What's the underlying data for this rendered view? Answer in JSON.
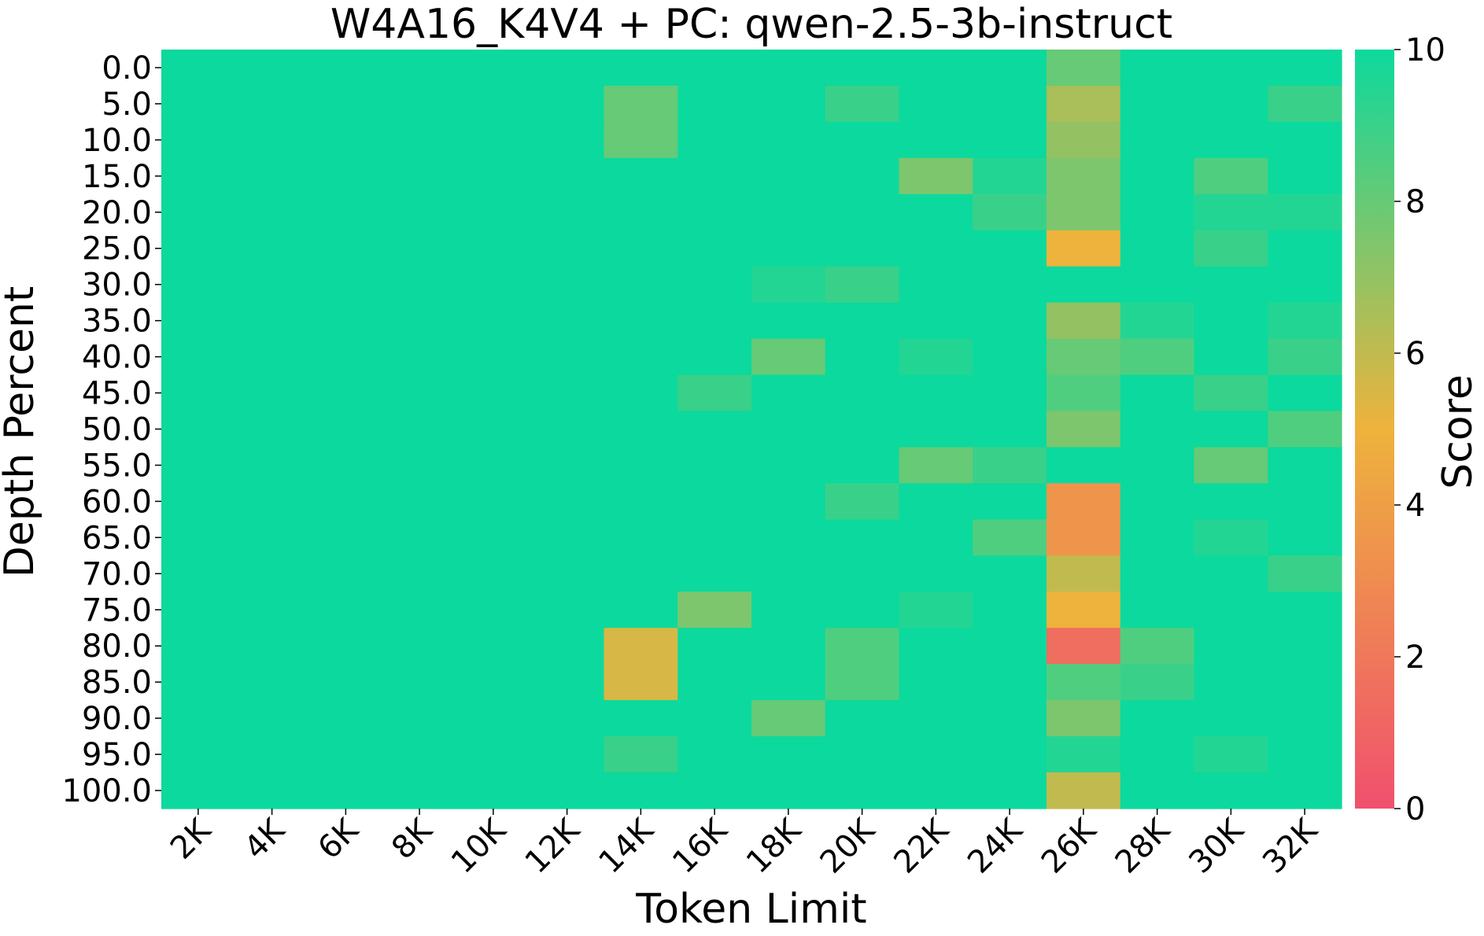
{
  "chart_data": {
    "type": "heatmap",
    "title": "W4A16_K4V4 + PC: qwen-2.5-3b-instruct",
    "xlabel": "Token Limit",
    "ylabel": "Depth Percent",
    "x_categories": [
      "2K",
      "4K",
      "6K",
      "8K",
      "10K",
      "12K",
      "14K",
      "16K",
      "18K",
      "20K",
      "22K",
      "24K",
      "26K",
      "28K",
      "30K",
      "32K"
    ],
    "y_categories": [
      "0.0",
      "5.0",
      "10.0",
      "15.0",
      "20.0",
      "25.0",
      "30.0",
      "35.0",
      "40.0",
      "45.0",
      "50.0",
      "55.0",
      "60.0",
      "65.0",
      "70.0",
      "75.0",
      "80.0",
      "85.0",
      "90.0",
      "95.0",
      "100.0"
    ],
    "values": [
      [
        10,
        10,
        10,
        10,
        10,
        10,
        10,
        10,
        10,
        10,
        10,
        10,
        8,
        10,
        10,
        10
      ],
      [
        10,
        10,
        10,
        10,
        10,
        10,
        8,
        10,
        10,
        9,
        10,
        10,
        6.5,
        10,
        10,
        9
      ],
      [
        10,
        10,
        10,
        10,
        10,
        10,
        8,
        10,
        10,
        10,
        10,
        10,
        7,
        10,
        10,
        10
      ],
      [
        10,
        10,
        10,
        10,
        10,
        10,
        10,
        10,
        10,
        10,
        7.5,
        9.5,
        7.5,
        10,
        8.5,
        10
      ],
      [
        10,
        10,
        10,
        10,
        10,
        10,
        10,
        10,
        10,
        10,
        10,
        9,
        7.5,
        10,
        9.5,
        9.5
      ],
      [
        10,
        10,
        10,
        10,
        10,
        10,
        10,
        10,
        10,
        10,
        10,
        10,
        5,
        10,
        9,
        10
      ],
      [
        10,
        10,
        10,
        10,
        10,
        10,
        10,
        10,
        9.5,
        9,
        10,
        10,
        10,
        10,
        10,
        10
      ],
      [
        10,
        10,
        10,
        10,
        10,
        10,
        10,
        10,
        10,
        10,
        10,
        10,
        7,
        9.5,
        10,
        9.5
      ],
      [
        10,
        10,
        10,
        10,
        10,
        10,
        10,
        10,
        8,
        10,
        9.5,
        10,
        8,
        8.5,
        10,
        9
      ],
      [
        10,
        10,
        10,
        10,
        10,
        10,
        10,
        9,
        10,
        10,
        10,
        10,
        8.5,
        10,
        9,
        10
      ],
      [
        10,
        10,
        10,
        10,
        10,
        10,
        10,
        10,
        10,
        10,
        10,
        10,
        7.5,
        10,
        10,
        8.5
      ],
      [
        10,
        10,
        10,
        10,
        10,
        10,
        10,
        10,
        10,
        10,
        8,
        9,
        10,
        10,
        8,
        10
      ],
      [
        10,
        10,
        10,
        10,
        10,
        10,
        10,
        10,
        10,
        9,
        10,
        10,
        3.5,
        10,
        10,
        10
      ],
      [
        10,
        10,
        10,
        10,
        10,
        10,
        10,
        10,
        10,
        10,
        10,
        8.5,
        3.5,
        10,
        9.5,
        10
      ],
      [
        10,
        10,
        10,
        10,
        10,
        10,
        10,
        10,
        10,
        10,
        10,
        10,
        6,
        10,
        10,
        9
      ],
      [
        10,
        10,
        10,
        10,
        10,
        10,
        10,
        7.5,
        10,
        10,
        9.5,
        10,
        5,
        10,
        10,
        10
      ],
      [
        10,
        10,
        10,
        10,
        10,
        10,
        5.5,
        10,
        10,
        8.5,
        10,
        10,
        1.5,
        8.5,
        10,
        10
      ],
      [
        10,
        10,
        10,
        10,
        10,
        10,
        5.5,
        10,
        10,
        8.5,
        10,
        10,
        8.5,
        9,
        10,
        10
      ],
      [
        10,
        10,
        10,
        10,
        10,
        10,
        10,
        10,
        8,
        10,
        10,
        10,
        7.5,
        10,
        10,
        10
      ],
      [
        10,
        10,
        10,
        10,
        10,
        10,
        9,
        10,
        10,
        10,
        10,
        10,
        9.5,
        10,
        9.5,
        10
      ],
      [
        10,
        10,
        10,
        10,
        10,
        10,
        10,
        10,
        10,
        10,
        10,
        10,
        6,
        10,
        10,
        10
      ]
    ],
    "colorbar": {
      "label": "Score",
      "min": 0,
      "max": 10,
      "ticks": [
        "0",
        "2",
        "4",
        "6",
        "8",
        "10"
      ],
      "colors": [
        "#f0506e",
        "#eeb33c",
        "#0cd99d"
      ]
    },
    "grid": false
  }
}
